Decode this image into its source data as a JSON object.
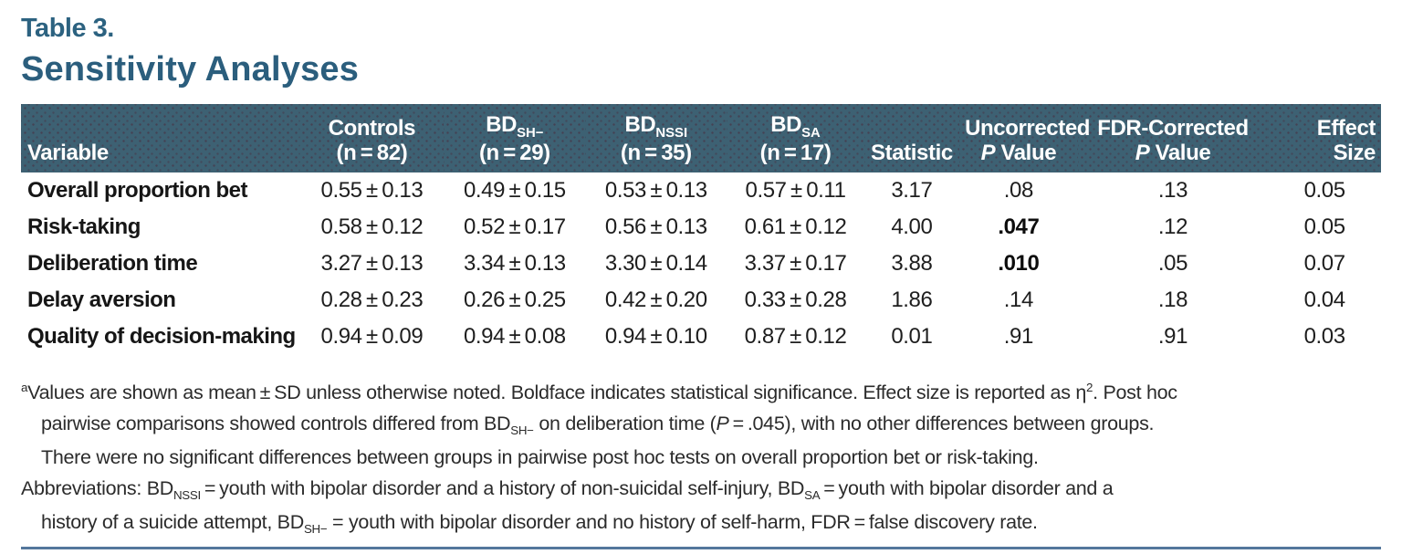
{
  "colors": {
    "accent_teal": "#2c6280",
    "title_teal": "#2b5e7d",
    "header_background": "#3d6173",
    "header_text": "#ffffff",
    "body_text": "#1e1e1e",
    "bottom_rule": "#54779c"
  },
  "header": {
    "table_number": "Table 3.",
    "title": "Sensitivity Analyses"
  },
  "table": {
    "headers": {
      "variable": {
        "line1": [],
        "line2": [
          {
            "t": "Variable"
          }
        ]
      },
      "controls": {
        "line1": [
          {
            "t": "Controls"
          }
        ],
        "line2": [
          {
            "t": "(n = 82)"
          }
        ]
      },
      "bd_sh": {
        "line1": [
          {
            "t": "BD"
          },
          {
            "t": "SH−",
            "s": "sub"
          }
        ],
        "line2": [
          {
            "t": "(n = 29)"
          }
        ]
      },
      "bd_nssi": {
        "line1": [
          {
            "t": "BD"
          },
          {
            "t": "NSSI",
            "s": "sub"
          }
        ],
        "line2": [
          {
            "t": "(n = 35)"
          }
        ]
      },
      "bd_sa": {
        "line1": [
          {
            "t": "BD"
          },
          {
            "t": "SA",
            "s": "sub"
          }
        ],
        "line2": [
          {
            "t": "(n = 17)"
          }
        ]
      },
      "statistic": {
        "line1": [],
        "line2": [
          {
            "t": "Statistic"
          }
        ]
      },
      "p_uncorrected": {
        "line1": [
          {
            "t": "Uncorrected"
          }
        ],
        "line2": [
          {
            "t": "P",
            "s": "i"
          },
          {
            "t": " Value"
          }
        ]
      },
      "p_fdr": {
        "line1": [
          {
            "t": "FDR-Corrected"
          }
        ],
        "line2": [
          {
            "t": "P",
            "s": "i"
          },
          {
            "t": " Value"
          }
        ]
      },
      "effect_size": {
        "line1": [],
        "line2": [
          {
            "t": "Effect Size"
          }
        ]
      }
    },
    "rows": [
      {
        "variable": "Overall proportion bet",
        "cells": [
          "0.55 ± 0.13",
          "0.49 ± 0.15",
          "0.53 ± 0.13",
          "0.57 ± 0.11",
          "3.17",
          ".08",
          ".13",
          "0.05"
        ],
        "bold_cells": []
      },
      {
        "variable": "Risk-taking",
        "cells": [
          "0.58 ± 0.12",
          "0.52 ± 0.17",
          "0.56 ± 0.13",
          "0.61 ± 0.12",
          "4.00",
          ".047",
          ".12",
          "0.05"
        ],
        "bold_cells": [
          5
        ]
      },
      {
        "variable": "Deliberation time",
        "cells": [
          "3.27 ± 0.13",
          "3.34 ± 0.13",
          "3.30 ± 0.14",
          "3.37 ± 0.17",
          "3.88",
          ".010",
          ".05",
          "0.07"
        ],
        "bold_cells": [
          5
        ]
      },
      {
        "variable": "Delay aversion",
        "cells": [
          "0.28 ± 0.23",
          "0.26 ± 0.25",
          "0.42 ± 0.20",
          "0.33 ± 0.28",
          "1.86",
          ".14",
          ".18",
          "0.04"
        ],
        "bold_cells": []
      },
      {
        "variable": "Quality of decision-making",
        "cells": [
          "0.94 ± 0.09",
          "0.94 ± 0.08",
          "0.94 ± 0.10",
          "0.87 ± 0.12",
          "0.01",
          ".91",
          ".91",
          "0.03"
        ],
        "bold_cells": []
      }
    ]
  },
  "footnotes": {
    "note_a": [
      {
        "t": "a",
        "s": "sup"
      },
      {
        "t": "Values are shown as mean ± SD unless otherwise noted. Boldface indicates statistical significance. Effect size is reported as η"
      },
      {
        "t": "2",
        "s": "sup"
      },
      {
        "t": ". Post hoc"
      },
      {
        "t": "\n"
      },
      {
        "t": "pairwise comparisons showed controls differed from BD"
      },
      {
        "t": "SH−",
        "s": "sub"
      },
      {
        "t": " on deliberation time ("
      },
      {
        "t": "P",
        "s": "i"
      },
      {
        "t": " = .045), with no other differences between groups."
      },
      {
        "t": "\n"
      },
      {
        "t": "There were no significant differences between groups in pairwise post hoc tests on overall proportion bet or risk-taking."
      }
    ],
    "abbreviations": [
      {
        "t": "Abbreviations: BD"
      },
      {
        "t": "NSSI",
        "s": "sub"
      },
      {
        "t": " = youth with bipolar disorder and a history of non-suicidal self-injury, BD"
      },
      {
        "t": "SA",
        "s": "sub"
      },
      {
        "t": " = youth with bipolar disorder and a"
      },
      {
        "t": "\n"
      },
      {
        "t": "history of a suicide attempt, BD"
      },
      {
        "t": "SH−",
        "s": "sub"
      },
      {
        "t": " = youth with bipolar disorder and no history of self-harm, FDR = false discovery rate."
      }
    ]
  }
}
